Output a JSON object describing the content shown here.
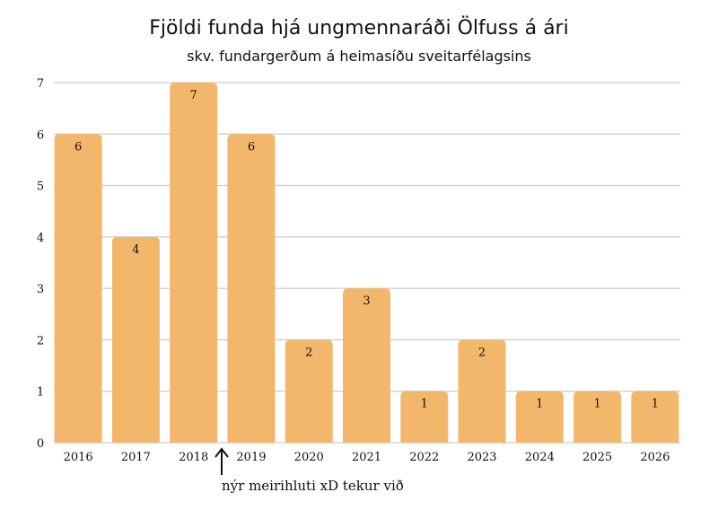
{
  "chart_data": {
    "type": "bar",
    "title": "Fjöldi funda hjá ungmennaráði Ölfuss á ári",
    "subtitle": "skv. fundargerðum á heimasíðu sveitarfélagsins",
    "categories": [
      "2016",
      "2017",
      "2018",
      "2019",
      "2020",
      "2021",
      "2022",
      "2023",
      "2024",
      "2025",
      "2026"
    ],
    "values": [
      6,
      4,
      7,
      6,
      2,
      3,
      1,
      2,
      1,
      1,
      1
    ],
    "xlabel": "",
    "ylabel": "",
    "ylim": [
      0,
      7
    ],
    "yticks": [
      "0",
      "1",
      "2",
      "3",
      "4",
      "5",
      "6",
      "7"
    ],
    "grid": true,
    "bar_color": "#F3B76B",
    "annotation": {
      "text": "nýr meirihluti xD tekur við",
      "between": [
        "2018",
        "2019"
      ]
    }
  }
}
